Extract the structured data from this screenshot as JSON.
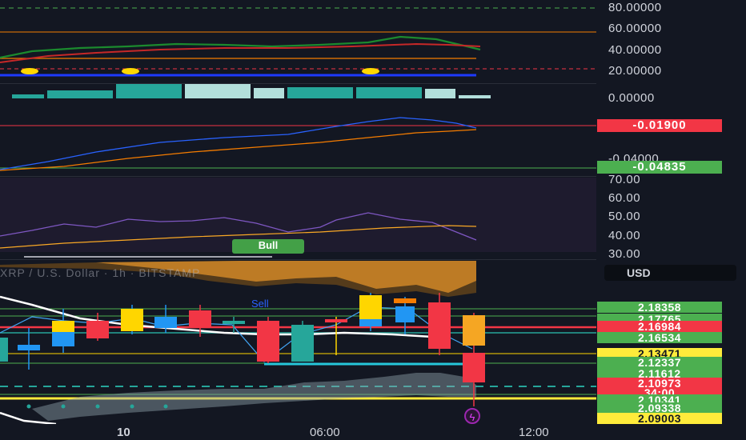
{
  "symbol_title": "XRP / U.S. Dollar · 1h · BITSTAMP",
  "currency": "USD",
  "signals": {
    "bull": "Bull",
    "sell": "Sell"
  },
  "osc_axis": [
    "80.00000",
    "60.00000",
    "40.00000",
    "20.00000"
  ],
  "hist_axis": [
    "0.00000"
  ],
  "macd_axis": [
    "-0.04000"
  ],
  "macd_badges": [
    {
      "label": "-0.01900",
      "color": "#f23645"
    },
    {
      "label": "-0.04835",
      "color": "#4caf50"
    }
  ],
  "rsi_axis": [
    "70.00",
    "60.00",
    "50.00",
    "40.00",
    "30.00"
  ],
  "price_tags": [
    {
      "label": "2.18358",
      "color": "#4caf50"
    },
    {
      "label": "2.17765",
      "color": "#4caf50"
    },
    {
      "label": "2.16984",
      "color": "#f23645"
    },
    {
      "label": "2.16534",
      "color": "#4caf50"
    },
    {
      "label": "2.13471",
      "color": "#ffeb3b"
    },
    {
      "label": "2.12337",
      "color": "#4caf50"
    },
    {
      "label": "2.11612",
      "color": "#4caf50"
    },
    {
      "label": "2.10973",
      "color": "#f23645"
    },
    {
      "label": "34:00",
      "color": "#f23645"
    },
    {
      "label": "2.10341",
      "color": "#4caf50"
    },
    {
      "label": "2.09338",
      "color": "#4caf50"
    },
    {
      "label": "2.09003",
      "color": "#ffeb3b"
    }
  ],
  "time_labels": [
    "10",
    "06:00",
    "12:00"
  ],
  "colors": {
    "background": "#131722",
    "up": "#26a69a",
    "down": "#f23645",
    "highlight": "#ffd600",
    "blue": "#2196f3"
  },
  "icons": [
    "lightning-icon"
  ]
}
